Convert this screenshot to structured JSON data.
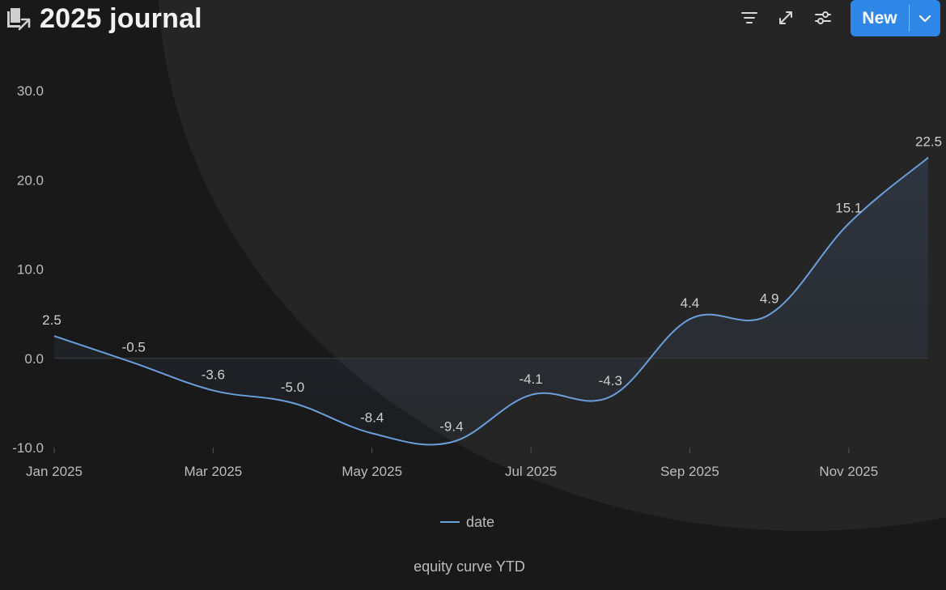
{
  "header": {
    "title": "2025 journal",
    "title_icon": "notes-pages-icon",
    "tools": [
      {
        "name": "filter-icon"
      },
      {
        "name": "expand-icon"
      },
      {
        "name": "sliders-icon"
      }
    ],
    "new_button_label": "New",
    "new_button_caret": "chevron-down-icon",
    "accent_color": "#2e87e6"
  },
  "chart_data": {
    "type": "area",
    "title": "equity curve YTD",
    "xlabel": "",
    "ylabel": "",
    "x_ticks": [
      "Jan 2025",
      "Mar 2025",
      "May 2025",
      "Jul 2025",
      "Sep 2025",
      "Nov 2025"
    ],
    "y_ticks": [
      "30.0",
      "20.0",
      "10.0",
      "0.0",
      "-10.0"
    ],
    "ylim": [
      -10,
      30
    ],
    "series": [
      {
        "name": "date",
        "color": "#6b9fdc",
        "x": [
          0,
          1,
          2,
          3,
          4,
          5,
          6,
          7,
          8,
          9,
          10,
          11
        ],
        "values": [
          2.5,
          -0.5,
          -3.6,
          -5.0,
          -8.4,
          -9.4,
          -4.1,
          -4.3,
          4.4,
          4.9,
          15.1,
          22.5
        ],
        "labels": [
          "2.5",
          "-0.5",
          "-3.6",
          "-5.0",
          "-8.4",
          "-9.4",
          "-4.1",
          "-4.3",
          "4.4",
          "4.9",
          "15.1",
          "22.5"
        ]
      }
    ],
    "legend_position": "bottom",
    "grid": false
  }
}
